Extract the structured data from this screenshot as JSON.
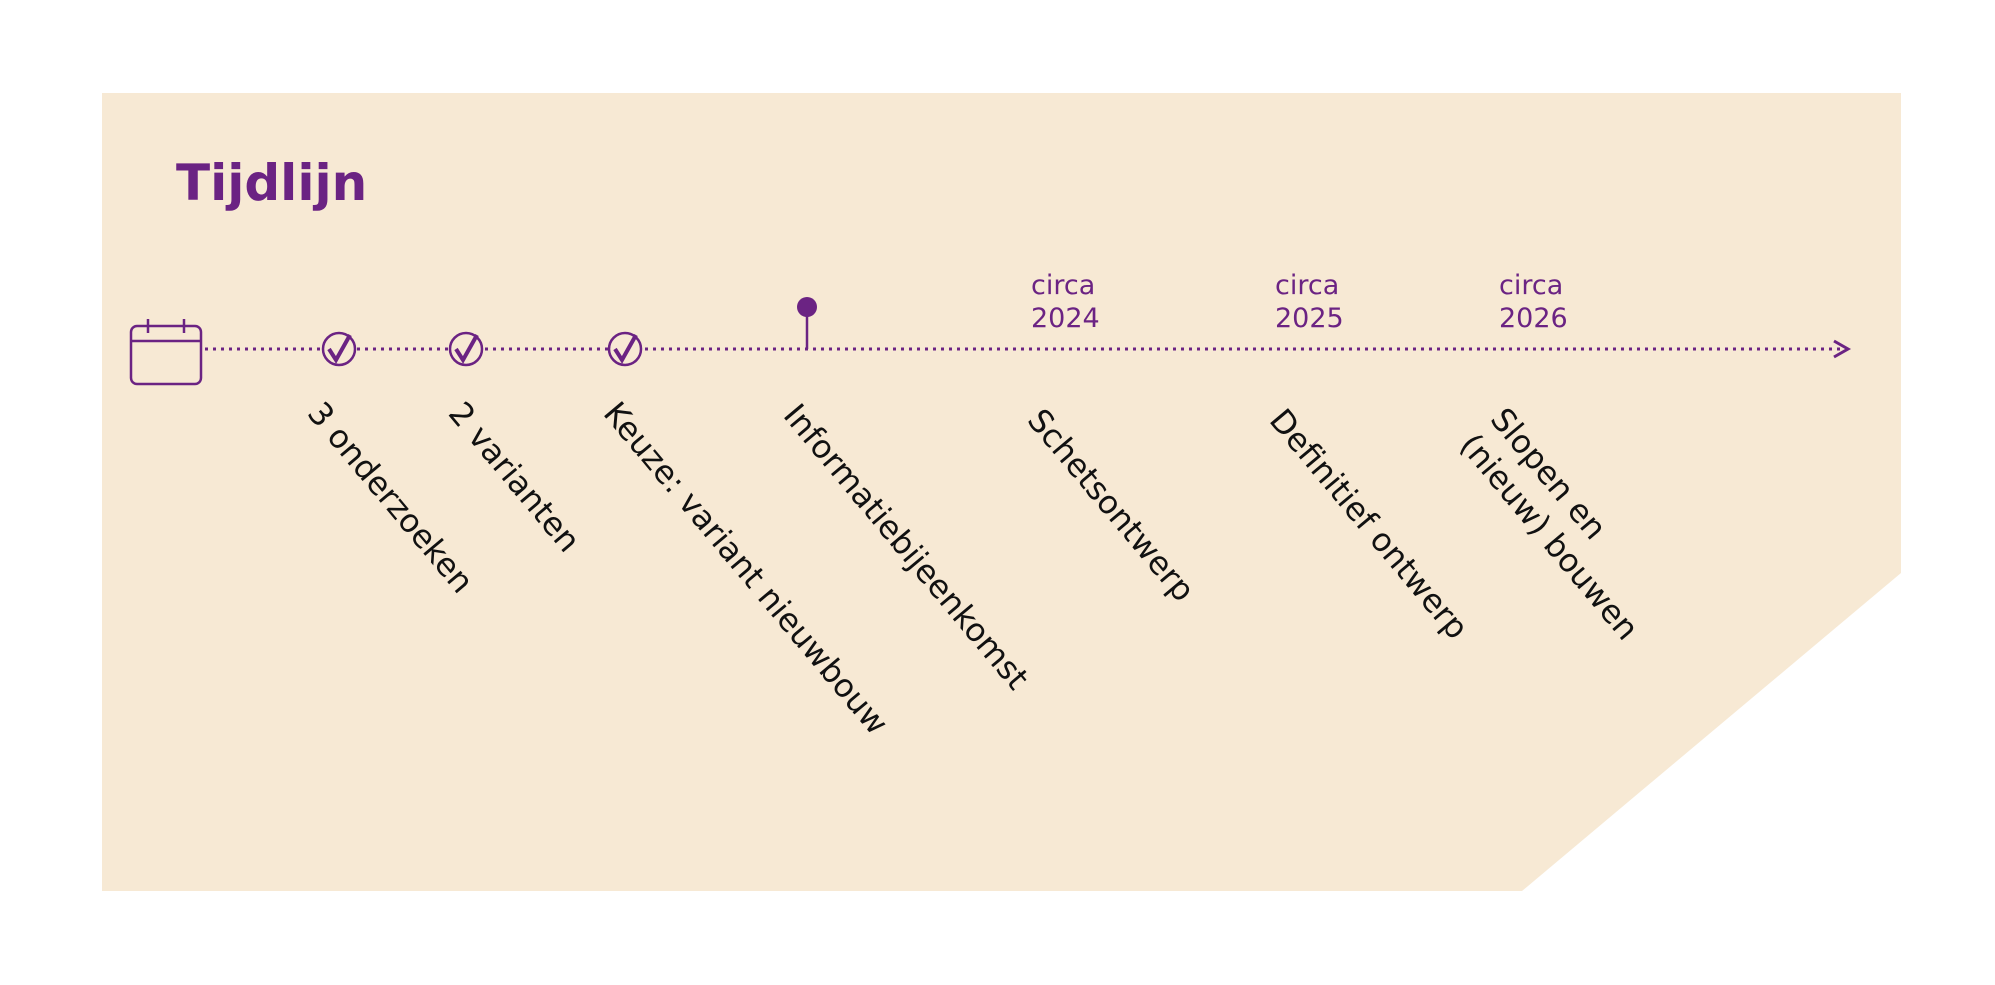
{
  "title": "Tijdlijn",
  "events": [
    {
      "label": [
        "3 onderzoeken"
      ]
    },
    {
      "label": [
        "2 varianten"
      ]
    },
    {
      "label": [
        "Keuze: variant nieuwbouw"
      ]
    },
    {
      "label": [
        "Informatiebijeenkomst"
      ]
    },
    {
      "label": [
        "Schetsontwerp"
      ],
      "date": [
        "circa",
        "2024"
      ]
    },
    {
      "label": [
        "Definitief ontwerp"
      ],
      "date": [
        "circa",
        "2025"
      ]
    },
    {
      "label": [
        "Slopen en",
        "(nieuw) bouwen"
      ],
      "date": [
        "circa",
        "2026"
      ]
    }
  ]
}
